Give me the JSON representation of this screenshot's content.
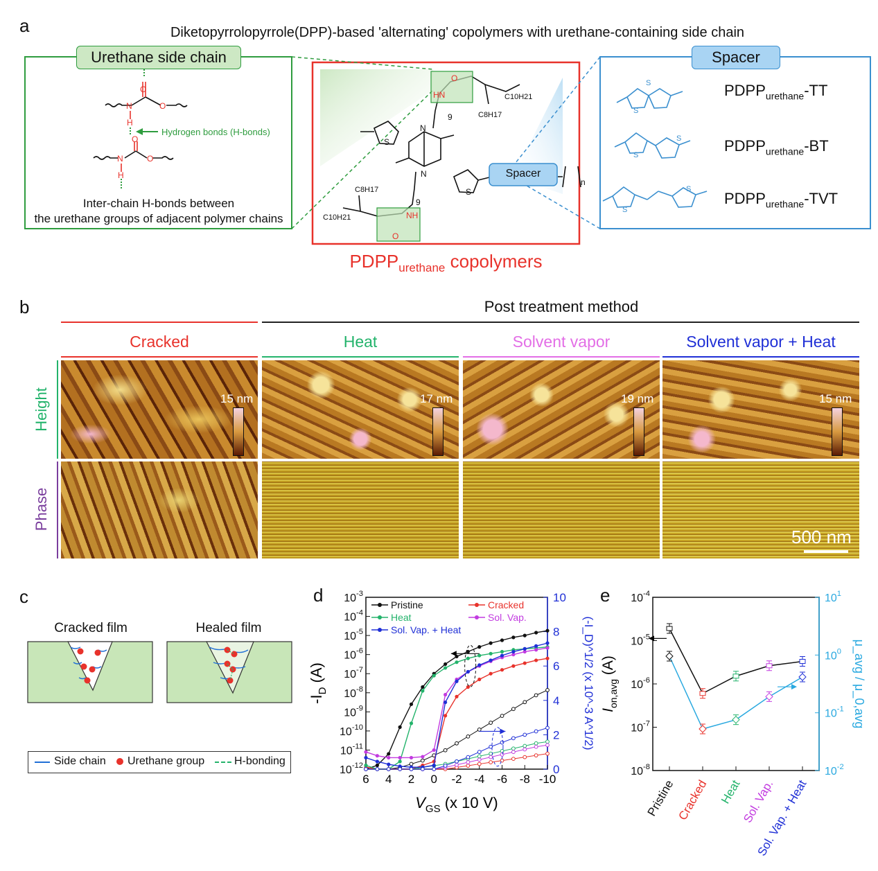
{
  "panel_a": {
    "letter": "a",
    "title": "Diketopyrrolopyrrole(DPP)-based 'alternating' copolymers with urethane-containing side chain",
    "left_box": {
      "title": "Urethane side chain",
      "hbond_label": "Hydrogen bonds (H-bonds)",
      "caption_line1": "Inter-chain H-bonds between",
      "caption_line2": "the urethane groups of adjacent polymer chains",
      "atoms": {
        "O": "O",
        "N": "N",
        "H": "H"
      }
    },
    "center_box": {
      "spacer_label": "Spacer",
      "n_label": "n",
      "nine": "9",
      "c10h21": "C10H21",
      "c8h17": "C8H17",
      "nh": "NH",
      "hn": "HN",
      "o": "O",
      "s": "S",
      "n": "N",
      "caption_main": "PDPP",
      "caption_sub": "urethane",
      "caption_tail": " copolymers"
    },
    "right_box": {
      "title": "Spacer",
      "items": [
        {
          "main": "PDPP",
          "sub": "urethane",
          "tail": "-TT"
        },
        {
          "main": "PDPP",
          "sub": "urethane",
          "tail": "-BT"
        },
        {
          "main": "PDPP",
          "sub": "urethane",
          "tail": "-TVT"
        }
      ],
      "s": "S"
    }
  },
  "panel_b": {
    "letter": "b",
    "header": "Post treatment method",
    "columns": [
      {
        "label": "Cracked",
        "color": "#e8322b",
        "scale": "15 nm"
      },
      {
        "label": "Heat",
        "color": "#23b36b",
        "scale": "17 nm"
      },
      {
        "label": "Solvent vapor",
        "color": "#e36ee6",
        "scale": "19 nm"
      },
      {
        "label": "Solvent vapor + Heat",
        "color": "#1f2fd6",
        "scale": "15 nm"
      }
    ],
    "rows": [
      {
        "label": "Height",
        "color": "#23b36b"
      },
      {
        "label": "Phase",
        "color": "#7a3e9d"
      }
    ],
    "scale_bar": "500 nm"
  },
  "panel_c": {
    "letter": "c",
    "left_title": "Cracked film",
    "right_title": "Healed film",
    "legend": [
      "Side chain",
      "Urethane group",
      "H-bonding"
    ]
  },
  "panel_d": {
    "letter": "d",
    "chart_data": {
      "type": "line",
      "xlabel_main": "V",
      "xlabel_sub": "GS",
      "xlabel_tail": " (x 10 V)",
      "ylabel_left_main": "-I",
      "ylabel_left_sub": "D",
      "ylabel_left_tail": " (A)",
      "ylabel_right": "(-I_D)^1/2 (x 10^-3 A^1/2)",
      "x_ticks": [
        "6",
        "4",
        "2",
        "0",
        "-2",
        "-4",
        "-6",
        "-8",
        "-10"
      ],
      "xlim": [
        6,
        -10
      ],
      "ylim_left_exp": [
        -12,
        -3
      ],
      "y_left_ticks": [
        "10-12",
        "10-11",
        "10-10",
        "10-9",
        "10-8",
        "10-7",
        "10-6",
        "10-5",
        "10-4",
        "10-3"
      ],
      "y_right_ticks": [
        "0",
        "2",
        "4",
        "6",
        "8",
        "10"
      ],
      "ylim_right": [
        0,
        10
      ],
      "legend": [
        "Pristine",
        "Cracked",
        "Heat",
        "Sol. Vap.",
        "Sol. Vap. + Heat"
      ],
      "series": [
        {
          "name": "Pristine",
          "color": "#111111",
          "x": [
            6,
            5,
            4,
            3,
            2,
            1,
            0,
            -1,
            -2,
            -3,
            -4,
            -5,
            -6,
            -7,
            -8,
            -9,
            -10
          ],
          "log_y": [
            -12,
            -11.8,
            -11.2,
            -9.8,
            -8.6,
            -7.7,
            -7.0,
            -6.5,
            -6.1,
            -5.85,
            -5.6,
            -5.4,
            -5.25,
            -5.1,
            -5.0,
            -4.85,
            -4.75
          ],
          "sqrt_y": [
            0,
            0,
            0,
            0.1,
            0.3,
            0.5,
            0.8,
            1.1,
            1.5,
            1.9,
            2.3,
            2.7,
            3.1,
            3.5,
            3.9,
            4.3,
            4.6
          ]
        },
        {
          "name": "Cracked",
          "color": "#e8322b",
          "x": [
            6,
            5,
            4,
            3,
            2,
            1,
            0,
            -1,
            -2,
            -3,
            -4,
            -5,
            -6,
            -7,
            -8,
            -9,
            -10
          ],
          "log_y": [
            -11.9,
            -12,
            -12,
            -12,
            -12,
            -11.8,
            -11.6,
            -9.2,
            -8.2,
            -7.7,
            -7.3,
            -7.0,
            -6.8,
            -6.6,
            -6.45,
            -6.3,
            -6.2
          ],
          "sqrt_y": [
            0,
            0,
            0,
            0,
            0,
            0,
            0,
            0,
            0.1,
            0.2,
            0.3,
            0.4,
            0.5,
            0.6,
            0.7,
            0.8,
            0.9
          ]
        },
        {
          "name": "Heat",
          "color": "#23b36b",
          "x": [
            6,
            5,
            4,
            3,
            2,
            1,
            0,
            -1,
            -2,
            -3,
            -4,
            -5,
            -6,
            -7,
            -8,
            -9,
            -10
          ],
          "log_y": [
            -11.8,
            -12,
            -12,
            -11.6,
            -9.6,
            -7.9,
            -7.1,
            -6.7,
            -6.4,
            -6.2,
            -6.05,
            -5.95,
            -5.85,
            -5.75,
            -5.7,
            -5.65,
            -5.6
          ],
          "sqrt_y": [
            0,
            0,
            0,
            0,
            0,
            0.1,
            0.2,
            0.3,
            0.45,
            0.6,
            0.75,
            0.9,
            1.05,
            1.2,
            1.35,
            1.5,
            1.6
          ]
        },
        {
          "name": "Sol. Vap.",
          "color": "#c23be0",
          "x": [
            6,
            5,
            4,
            3,
            2,
            1,
            0,
            -1,
            -2,
            -3,
            -4,
            -5,
            -6,
            -7,
            -8,
            -9,
            -10
          ],
          "log_y": [
            -11.1,
            -11.3,
            -11.4,
            -11.4,
            -11.4,
            -11.35,
            -11.0,
            -8.1,
            -7.3,
            -6.9,
            -6.6,
            -6.35,
            -6.15,
            -6.0,
            -5.85,
            -5.75,
            -5.65
          ],
          "sqrt_y": [
            0,
            0,
            0,
            0,
            0,
            0,
            0,
            0.1,
            0.25,
            0.4,
            0.55,
            0.7,
            0.85,
            1.0,
            1.15,
            1.3,
            1.4
          ]
        },
        {
          "name": "Sol. Vap. + Heat",
          "color": "#1f2fd6",
          "x": [
            6,
            5,
            4,
            3,
            2,
            1,
            0,
            -1,
            -2,
            -3,
            -4,
            -5,
            -6,
            -7,
            -8,
            -9,
            -10
          ],
          "log_y": [
            -11.4,
            -11.6,
            -11.75,
            -11.85,
            -11.9,
            -11.9,
            -11.8,
            -8.5,
            -7.4,
            -6.9,
            -6.55,
            -6.3,
            -6.05,
            -5.85,
            -5.7,
            -5.55,
            -5.4
          ],
          "sqrt_y": [
            0,
            0,
            0,
            0,
            0,
            0,
            0,
            0.2,
            0.45,
            0.7,
            1.0,
            1.3,
            1.55,
            1.8,
            2.0,
            2.2,
            2.4
          ]
        }
      ]
    }
  },
  "panel_e": {
    "letter": "e",
    "chart_data": {
      "type": "line",
      "categories": [
        "Pristine",
        "Cracked",
        "Heat",
        "Sol. Vap.",
        "Sol. Vap. + Heat"
      ],
      "category_colors": [
        "#111111",
        "#e8322b",
        "#23b36b",
        "#c23be0",
        "#1f2fd6"
      ],
      "ylabel_left_main": "I",
      "ylabel_left_sub": "on,avg",
      "ylabel_left_tail": " (A)",
      "ylabel_right": "μ_avg / μ_0,avg",
      "y_left_ticks": [
        "10-8",
        "10-7",
        "10-6",
        "10-5",
        "10-4"
      ],
      "y_right_ticks": [
        "10-2",
        "10-1",
        "100",
        "101"
      ],
      "ylim_left_exp": [
        -8,
        -4
      ],
      "ylim_right_exp": [
        -2,
        1
      ],
      "series": [
        {
          "name": "I_on,avg",
          "color": "#111111",
          "axis": "left",
          "log_values": [
            -4.72,
            -6.22,
            -5.82,
            -5.58,
            -5.48
          ]
        },
        {
          "name": "μ_avg/μ_0,avg",
          "color": "#2aa9e0",
          "axis": "right",
          "log_values": [
            -0.02,
            -1.28,
            -1.12,
            -0.72,
            -0.38
          ]
        }
      ]
    }
  }
}
